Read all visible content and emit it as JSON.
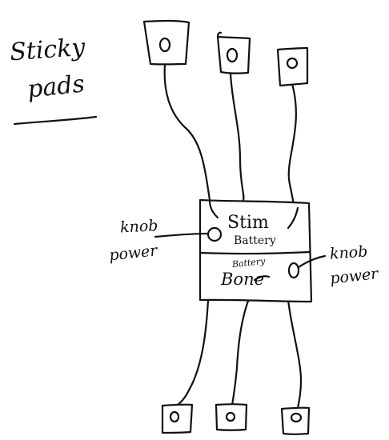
{
  "title": {
    "line1": "Sticky",
    "line2": "pads"
  },
  "device": {
    "top_label": "Stim",
    "top_sublabel": "Battery",
    "bottom_label": "Bone",
    "bottom_sublabel": "Battery"
  },
  "knobs": {
    "left": {
      "line1": "knob",
      "line2": "power"
    },
    "right": {
      "line1": "knob",
      "line2": "power"
    }
  },
  "pads": {
    "count_top": 3,
    "count_bottom": 3
  },
  "colors": {
    "ink": "#111111",
    "background": "#ffffff"
  }
}
